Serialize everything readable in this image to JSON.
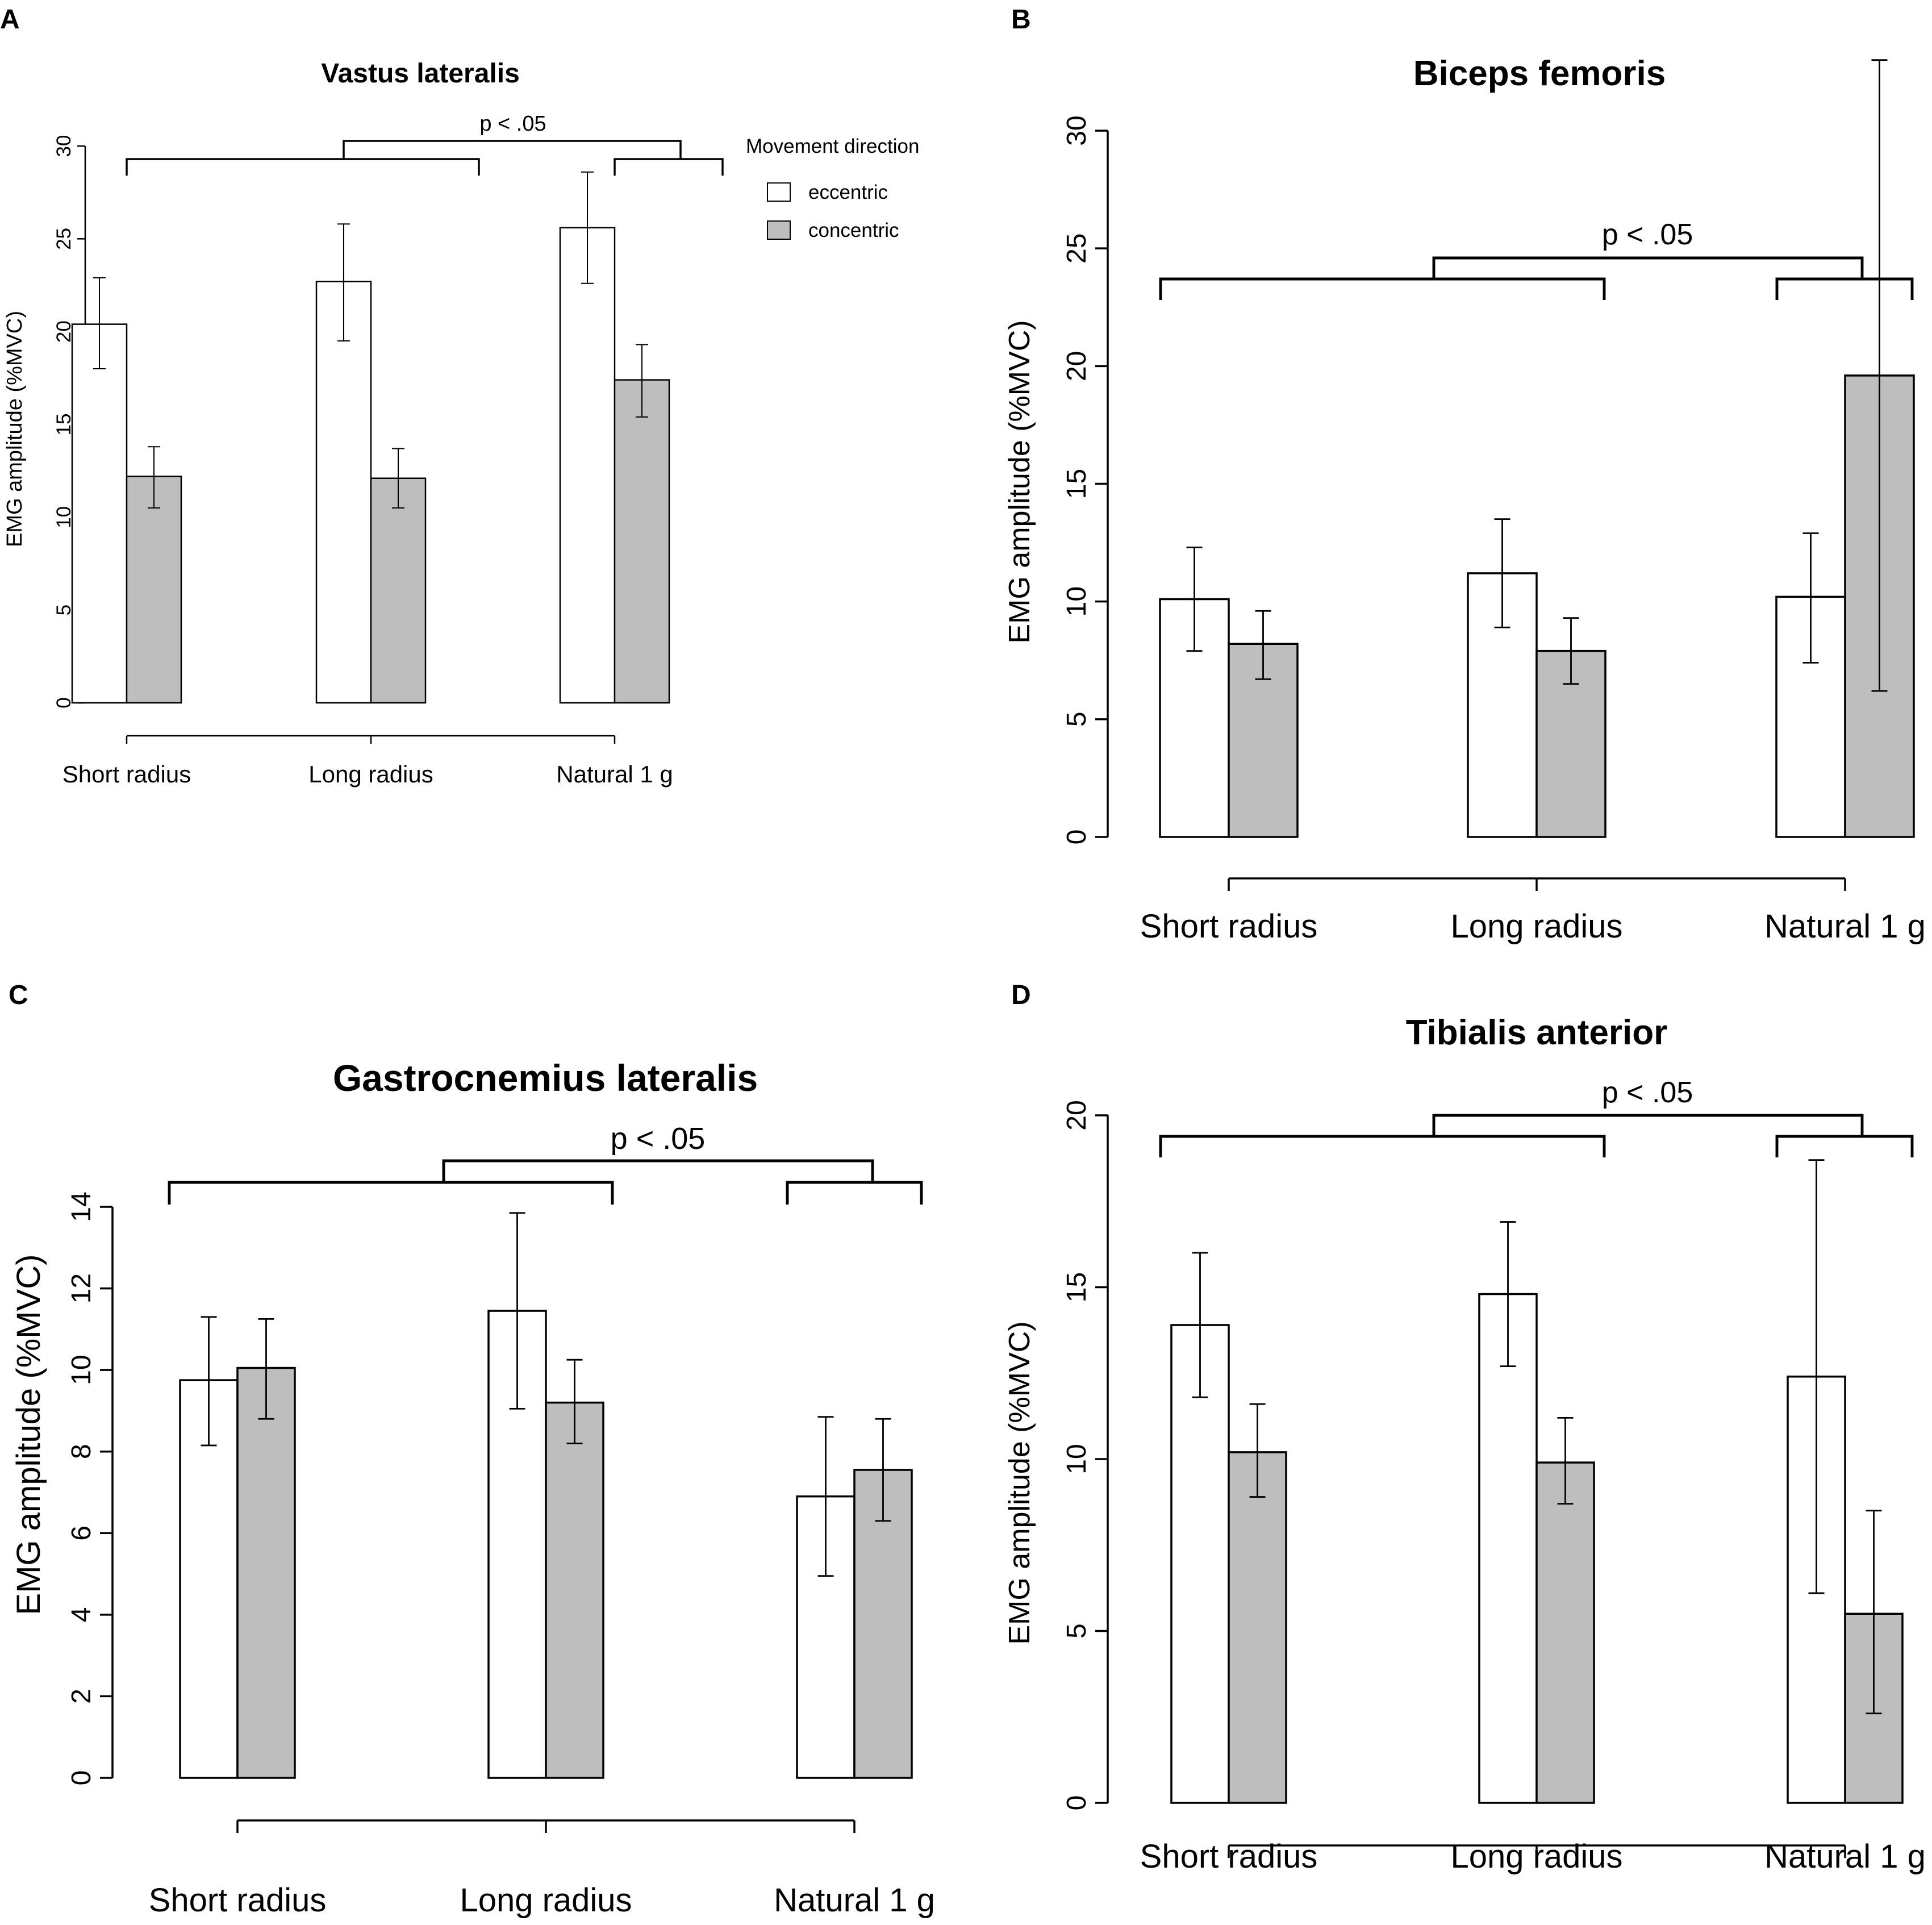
{
  "figure": {
    "legend": {
      "title": "Movement direction",
      "entries": [
        "eccentric",
        "concentric"
      ],
      "colors": [
        "#ffffff",
        "#bebebe"
      ]
    },
    "bar_colors": {
      "eccentric": "#ffffff",
      "concentric": "#bebebe"
    }
  },
  "chart_data": [
    {
      "panel": "A",
      "type": "bar",
      "title": "Vastus lateralis",
      "ylabel": "EMG amplitude (%MVC)",
      "xlabel": "",
      "ylim": [
        0,
        30
      ],
      "yticks": [
        "0",
        "5",
        "10",
        "15",
        "20",
        "25",
        "30"
      ],
      "categories": [
        "Short radius",
        "Long radius",
        "Natural 1 g"
      ],
      "series": [
        {
          "name": "eccentric",
          "values": [
            20.4,
            22.7,
            25.6
          ],
          "error_low": [
            18.0,
            19.5,
            22.6
          ],
          "error_high": [
            22.9,
            25.8,
            28.6
          ]
        },
        {
          "name": "concentric",
          "values": [
            12.2,
            12.1,
            17.4
          ],
          "error_low": [
            10.5,
            10.5,
            15.4
          ],
          "error_high": [
            13.8,
            13.7,
            19.3
          ]
        }
      ],
      "significance": "p < .05",
      "legend_visible": true
    },
    {
      "panel": "B",
      "type": "bar",
      "title": "Biceps femoris",
      "ylabel": "EMG amplitude (%MVC)",
      "xlabel": "",
      "ylim": [
        0,
        30
      ],
      "yticks": [
        "0",
        "5",
        "10",
        "15",
        "20",
        "25",
        "30"
      ],
      "categories": [
        "Short radius",
        "Long radius",
        "Natural 1 g"
      ],
      "series": [
        {
          "name": "eccentric",
          "values": [
            10.1,
            11.2,
            10.2
          ],
          "error_low": [
            7.9,
            8.9,
            7.4
          ],
          "error_high": [
            12.3,
            13.5,
            12.9
          ]
        },
        {
          "name": "concentric",
          "values": [
            8.2,
            7.9,
            19.6
          ],
          "error_low": [
            6.7,
            6.5,
            6.2
          ],
          "error_high": [
            9.6,
            9.3,
            33.0
          ]
        }
      ],
      "significance": "p < .05",
      "legend_visible": false
    },
    {
      "panel": "C",
      "type": "bar",
      "title": "Gastrocnemius lateralis",
      "ylabel": "EMG amplitude (%MVC)",
      "xlabel": "",
      "ylim": [
        0,
        14
      ],
      "yticks": [
        "0",
        "2",
        "4",
        "6",
        "8",
        "10",
        "12",
        "14"
      ],
      "categories": [
        "Short radius",
        "Long radius",
        "Natural 1 g"
      ],
      "series": [
        {
          "name": "eccentric",
          "values": [
            9.75,
            11.45,
            6.9
          ],
          "error_low": [
            8.15,
            9.05,
            4.95
          ],
          "error_high": [
            11.3,
            13.85,
            8.85
          ]
        },
        {
          "name": "concentric",
          "values": [
            10.05,
            9.2,
            7.55
          ],
          "error_low": [
            8.8,
            8.2,
            6.3
          ],
          "error_high": [
            11.25,
            10.25,
            8.8
          ]
        }
      ],
      "significance": "p < .05",
      "legend_visible": false
    },
    {
      "panel": "D",
      "type": "bar",
      "title": "Tibialis anterior",
      "ylabel": "EMG amplitude (%MVC)",
      "xlabel": "",
      "ylim": [
        0,
        20
      ],
      "yticks": [
        "0",
        "5",
        "10",
        "15",
        "20"
      ],
      "categories": [
        "Short radius",
        "Long radius",
        "Natural 1 g"
      ],
      "series": [
        {
          "name": "eccentric",
          "values": [
            13.9,
            14.8,
            12.4
          ],
          "error_low": [
            11.8,
            12.7,
            6.1
          ],
          "error_high": [
            16.0,
            16.9,
            18.7
          ]
        },
        {
          "name": "concentric",
          "values": [
            10.2,
            9.9,
            5.5
          ],
          "error_low": [
            8.9,
            8.7,
            2.6
          ],
          "error_high": [
            11.6,
            11.2,
            8.5
          ]
        }
      ],
      "significance": "p < .05",
      "legend_visible": false
    }
  ]
}
